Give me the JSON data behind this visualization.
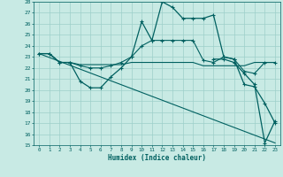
{
  "xlabel": "Humidex (Indice chaleur)",
  "xlim": [
    -0.5,
    23.5
  ],
  "ylim": [
    15,
    28
  ],
  "yticks": [
    15,
    16,
    17,
    18,
    19,
    20,
    21,
    22,
    23,
    24,
    25,
    26,
    27,
    28
  ],
  "xtick_labels": [
    "0",
    "1",
    "2",
    "3",
    "4",
    "5",
    "6",
    "7",
    "8",
    "9",
    "10",
    "11",
    "12",
    "13",
    "14",
    "15",
    "16",
    "17",
    "18",
    "19",
    "20",
    "21",
    "22",
    "23"
  ],
  "bg_color": "#c8eae4",
  "grid_color": "#9dcfca",
  "line_color": "#006060",
  "series": {
    "line_diagonal": {
      "x": [
        0,
        23
      ],
      "y": [
        23.3,
        15.2
      ]
    },
    "line_flat1": {
      "x": [
        0,
        1,
        2,
        3,
        4,
        5,
        6,
        7,
        8,
        9,
        10,
        11,
        12,
        13,
        14,
        15,
        16,
        17,
        18,
        19,
        20,
        21,
        22,
        23
      ],
      "y": [
        23.3,
        23.3,
        22.5,
        22.5,
        null,
        null,
        null,
        null,
        null,
        null,
        null,
        null,
        null,
        null,
        null,
        null,
        null,
        null,
        null,
        null,
        null,
        null,
        null,
        null
      ],
      "markers": false
    },
    "line_mid": {
      "x": [
        0,
        1,
        2,
        3,
        4,
        5,
        6,
        7,
        8,
        9,
        10,
        11,
        12,
        13,
        14,
        15,
        16,
        17,
        18,
        19,
        20,
        21,
        22,
        23
      ],
      "y": [
        23.3,
        23.3,
        22.5,
        22.5,
        22.3,
        22.3,
        22.3,
        22.3,
        22.3,
        22.5,
        22.5,
        22.5,
        22.5,
        22.5,
        22.5,
        22.5,
        22.2,
        22.2,
        22.2,
        22.2,
        22.2,
        22.5,
        22.5,
        22.5
      ]
    },
    "line_upper_flat": {
      "x": [
        0,
        1,
        2,
        3,
        4,
        5,
        6,
        7,
        8,
        9,
        10,
        11,
        12,
        13,
        14,
        15,
        16,
        17,
        18,
        19,
        20,
        21,
        22,
        23
      ],
      "y": [
        23.3,
        23.3,
        22.5,
        22.5,
        22.2,
        22.0,
        22.0,
        22.2,
        22.5,
        23.0,
        24.0,
        24.5,
        24.5,
        24.5,
        24.5,
        24.5,
        22.7,
        22.5,
        23.0,
        22.8,
        21.7,
        21.5,
        22.5,
        22.5
      ]
    },
    "line_main": {
      "x": [
        0,
        1,
        2,
        3,
        4,
        5,
        6,
        7,
        8,
        9,
        10,
        11,
        12,
        13,
        14,
        15,
        16,
        17,
        18,
        19,
        20,
        21,
        22,
        23
      ],
      "y": [
        23.3,
        23.3,
        22.5,
        22.5,
        20.8,
        20.2,
        20.2,
        21.2,
        22.0,
        23.0,
        26.2,
        24.5,
        28.0,
        27.5,
        26.5,
        26.5,
        26.5,
        26.8,
        23.0,
        22.8,
        20.5,
        20.3,
        18.8,
        17.0
      ]
    },
    "line_drop": {
      "x": [
        17,
        18,
        19,
        20,
        21,
        22,
        23
      ],
      "y": [
        22.8,
        22.8,
        22.5,
        21.5,
        20.5,
        15.2,
        17.2
      ]
    }
  }
}
